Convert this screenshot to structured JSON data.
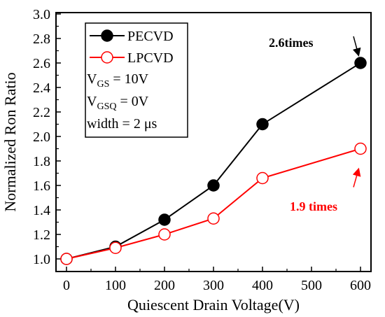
{
  "chart_data": {
    "type": "line",
    "xlabel": "Quiescent Drain Voltage(V)",
    "ylabel": "Normalized Ron Ratio",
    "xlim": [
      0,
      600
    ],
    "ylim": [
      1.0,
      3.0
    ],
    "x_ticks": [
      "0",
      "100",
      "200",
      "300",
      "400",
      "500",
      "600"
    ],
    "y_ticks": [
      "1.0",
      "1.2",
      "1.4",
      "1.6",
      "1.8",
      "2.0",
      "2.2",
      "2.4",
      "2.6",
      "2.8",
      "3.0"
    ],
    "x_tick_values": [
      0,
      100,
      200,
      300,
      400,
      500,
      600
    ],
    "y_tick_values": [
      1.0,
      1.2,
      1.4,
      1.6,
      1.8,
      2.0,
      2.2,
      2.4,
      2.6,
      2.8,
      3.0
    ],
    "grid": false,
    "legend_position": "top-left",
    "series": [
      {
        "name": "PECVD",
        "color": "#000000",
        "marker": "filled-circle",
        "x": [
          0,
          100,
          200,
          300,
          400,
          600
        ],
        "y": [
          1.0,
          1.1,
          1.32,
          1.6,
          2.1,
          2.6
        ]
      },
      {
        "name": "LPCVD",
        "color": "#ff0000",
        "marker": "open-circle",
        "x": [
          0,
          100,
          200,
          300,
          400,
          600
        ],
        "y": [
          1.0,
          1.09,
          1.2,
          1.33,
          1.66,
          1.9
        ]
      }
    ],
    "conditions": {
      "vgs": {
        "main": "V",
        "sub": "GS",
        "rest": " = 10V"
      },
      "vgsq": {
        "main": "V",
        "sub": "GSQ",
        "rest": " = 0V"
      },
      "width": "width = 2 μs"
    },
    "annotations": [
      {
        "text": "2.6times",
        "color": "#000000",
        "target_x": 600,
        "target_y": 2.6
      },
      {
        "text": "1.9 times",
        "color": "#ff0000",
        "target_x": 600,
        "target_y": 1.9
      }
    ]
  }
}
